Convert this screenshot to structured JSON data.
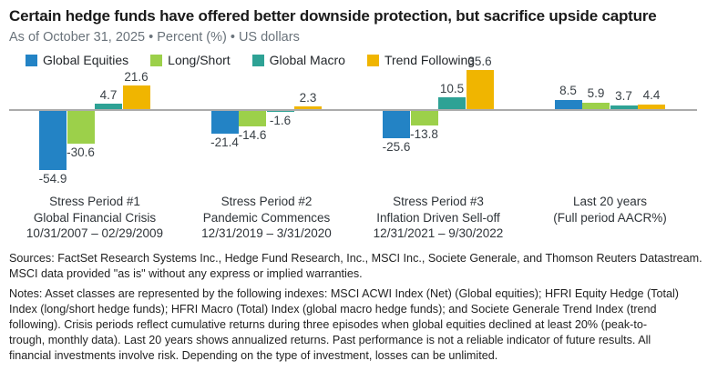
{
  "header": {
    "title": "Certain hedge funds have offered better downside protection, but sacrifice upside capture",
    "subtitle": "As of October 31, 2025 • Percent (%) • US dollars"
  },
  "colors": {
    "global_equities": "#2383c5",
    "long_short": "#9cd04a",
    "global_macro": "#2ea295",
    "trend_following": "#f0b500",
    "axis_line": "#ababab",
    "value_label": "#3a4147",
    "title_text": "#1a1a1a",
    "subtitle_text": "#6a737b"
  },
  "chart_data": {
    "type": "bar",
    "title": "Certain hedge funds have offered better downside protection, but sacrifice upside capture",
    "subtitle": "As of October 31, 2025 • Percent (%) • US dollars",
    "ylabel": "Percent (%)",
    "grid": false,
    "legend_position": "top",
    "value_labels": true,
    "baseline": 0,
    "ylim": [
      -60,
      40
    ],
    "categories": [
      [
        "Stress Period #1",
        "Global Financial Crisis",
        "10/31/2007 – 02/29/2009"
      ],
      [
        "Stress Period #2",
        "Pandemic Commences",
        "12/31/2019 – 3/31/2020"
      ],
      [
        "Stress Period #3",
        "Inflation Driven Sell-off",
        "12/31/2021 – 9/30/2022"
      ],
      [
        "Last 20 years",
        "(Full period AACR%)"
      ]
    ],
    "series": [
      {
        "name": "Global Equities",
        "color": "#2383c5",
        "values": [
          -54.9,
          -21.4,
          -25.6,
          8.5
        ]
      },
      {
        "name": "Long/Short",
        "color": "#9cd04a",
        "values": [
          -30.6,
          -14.6,
          -13.8,
          5.9
        ]
      },
      {
        "name": "Global Macro",
        "color": "#2ea295",
        "values": [
          4.7,
          -1.6,
          10.5,
          3.7
        ]
      },
      {
        "name": "Trend Following",
        "color": "#f0b500",
        "values": [
          21.6,
          2.3,
          35.6,
          4.4
        ]
      }
    ]
  },
  "footer": {
    "sources_lines": [
      "Sources: FactSet Research Systems Inc., Hedge Fund Research, Inc., MSCI Inc., Societe Generale, and Thomson Reuters Datastream.",
      "MSCI data provided \"as is\" without any express or implied warranties."
    ],
    "notes_lines": [
      "Notes: Asset classes are represented by the following indexes: MSCI ACWI Index (Net) (Global equities); HFRI Equity Hedge (Total)",
      "Index (long/short hedge funds); HFRI Macro (Total) Index (global macro hedge funds); and Societe Generale Trend Index (trend",
      "following). Crisis periods reflect cumulative returns during three episodes when global equities declined at least 20% (peak-to-",
      "trough, monthly data). Last 20 years shows annualized returns. Past performance is not a reliable indicator of future results. All",
      "financial investments involve risk. Depending on the type of investment, losses can be unlimited."
    ]
  }
}
